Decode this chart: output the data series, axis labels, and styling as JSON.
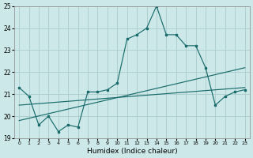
{
  "xlabel": "Humidex (Indice chaleur)",
  "bg_color": "#cce8e8",
  "grid_color": "#aacccc",
  "line_color": "#1a6b6b",
  "xlim": [
    -0.5,
    23.5
  ],
  "ylim": [
    19,
    25
  ],
  "yticks": [
    19,
    20,
    21,
    22,
    23,
    24,
    25
  ],
  "xticks": [
    0,
    1,
    2,
    3,
    4,
    5,
    6,
    7,
    8,
    9,
    10,
    11,
    12,
    13,
    14,
    15,
    16,
    17,
    18,
    19,
    20,
    21,
    22,
    23
  ],
  "line1_x": [
    0,
    1,
    2,
    3,
    4,
    5,
    6,
    7,
    8,
    9,
    10,
    11,
    12,
    13,
    14,
    15,
    16,
    17,
    18,
    19,
    20,
    21,
    22,
    23
  ],
  "line1_y": [
    21.3,
    20.9,
    19.6,
    20.0,
    19.3,
    19.6,
    19.5,
    21.1,
    21.1,
    21.2,
    21.5,
    23.5,
    23.7,
    24.0,
    25.0,
    23.7,
    23.7,
    23.2,
    23.2,
    22.2,
    20.5,
    20.9,
    21.1,
    21.2
  ],
  "trend1_x": [
    0,
    23
  ],
  "trend1_y": [
    19.8,
    22.2
  ],
  "trend2_x": [
    0,
    23
  ],
  "trend2_y": [
    20.5,
    21.3
  ]
}
